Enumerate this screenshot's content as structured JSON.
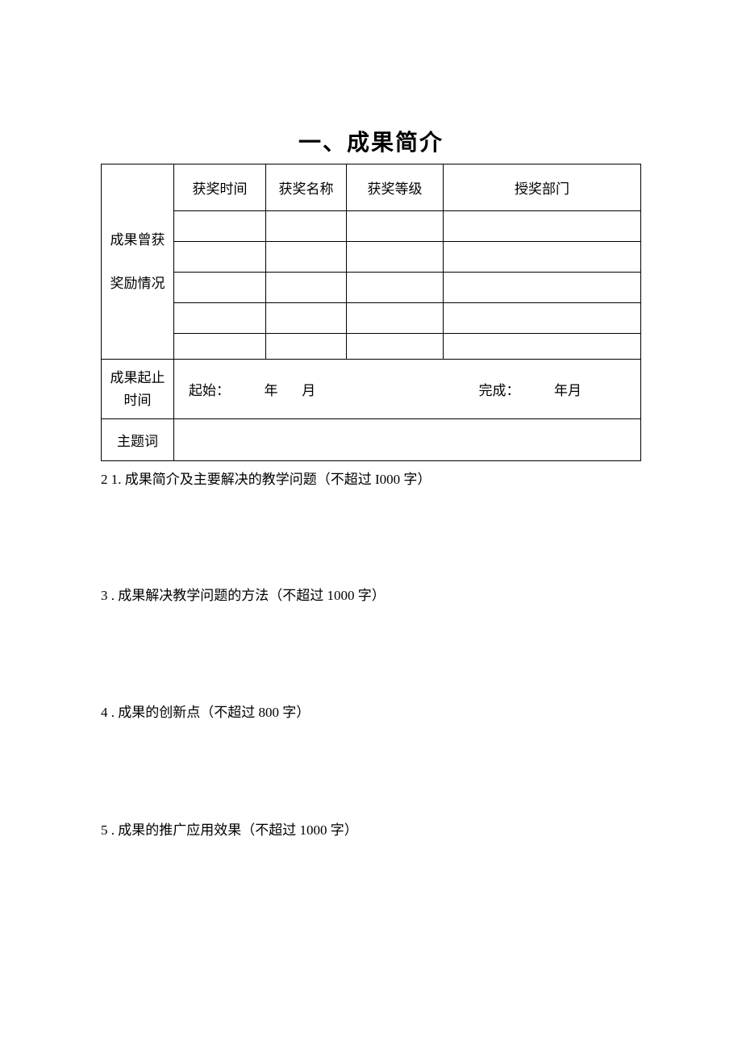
{
  "title": "一、成果简介",
  "table": {
    "row_label_award": "成果曾获\n奖励情况",
    "row_label_time": "成果起止时间",
    "row_label_keyword": "主题词",
    "headers": {
      "award_time": "获奖时间",
      "award_name": "获奖名称",
      "award_level": "获奖等级",
      "award_dept": "授奖部门"
    },
    "time_row": {
      "start_label": "起始：",
      "year_label": "年",
      "month_label": "月",
      "end_label": "完成：",
      "end_year_month": "年月"
    },
    "colors": {
      "border": "#000000",
      "background": "#ffffff",
      "text": "#000000"
    }
  },
  "sections": [
    {
      "num": "2 1.",
      "text": "成果简介及主要解决的教学问题（不超过 I000 字）"
    },
    {
      "num": "3 .",
      "text": "成果解决教学问题的方法（不超过 1000 字）"
    },
    {
      "num": "4 .",
      "text": "成果的创新点（不超过 800 字）"
    },
    {
      "num": "5 .",
      "text": "成果的推广应用效果（不超过 1000 字）"
    }
  ]
}
